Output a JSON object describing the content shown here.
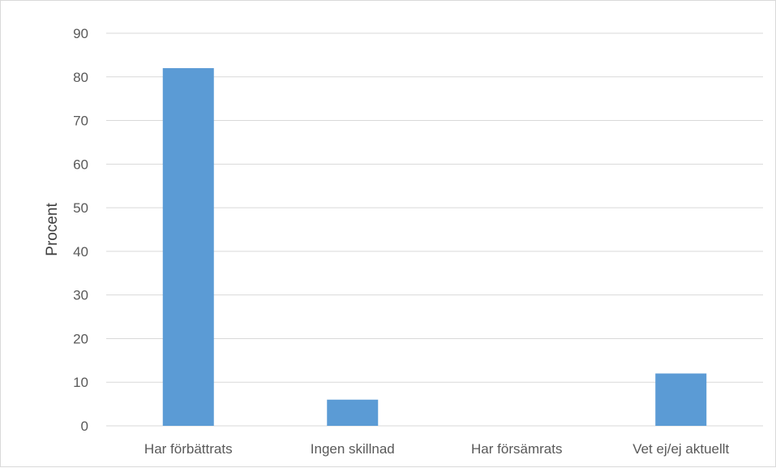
{
  "chart_data": {
    "type": "bar",
    "categories": [
      "Har förbättrats",
      "Ingen skillnad",
      "Har försämrats",
      "Vet ej/ej aktuellt"
    ],
    "values": [
      82,
      6,
      0,
      12
    ],
    "title": "",
    "xlabel": "",
    "ylabel": "Procent",
    "ylim": [
      0,
      90
    ],
    "yticks": [
      0,
      10,
      20,
      30,
      40,
      50,
      60,
      70,
      80,
      90
    ],
    "grid": true,
    "legend": "none",
    "bar_color": "#5B9BD5",
    "gridline_color": "#d9d9d9"
  }
}
